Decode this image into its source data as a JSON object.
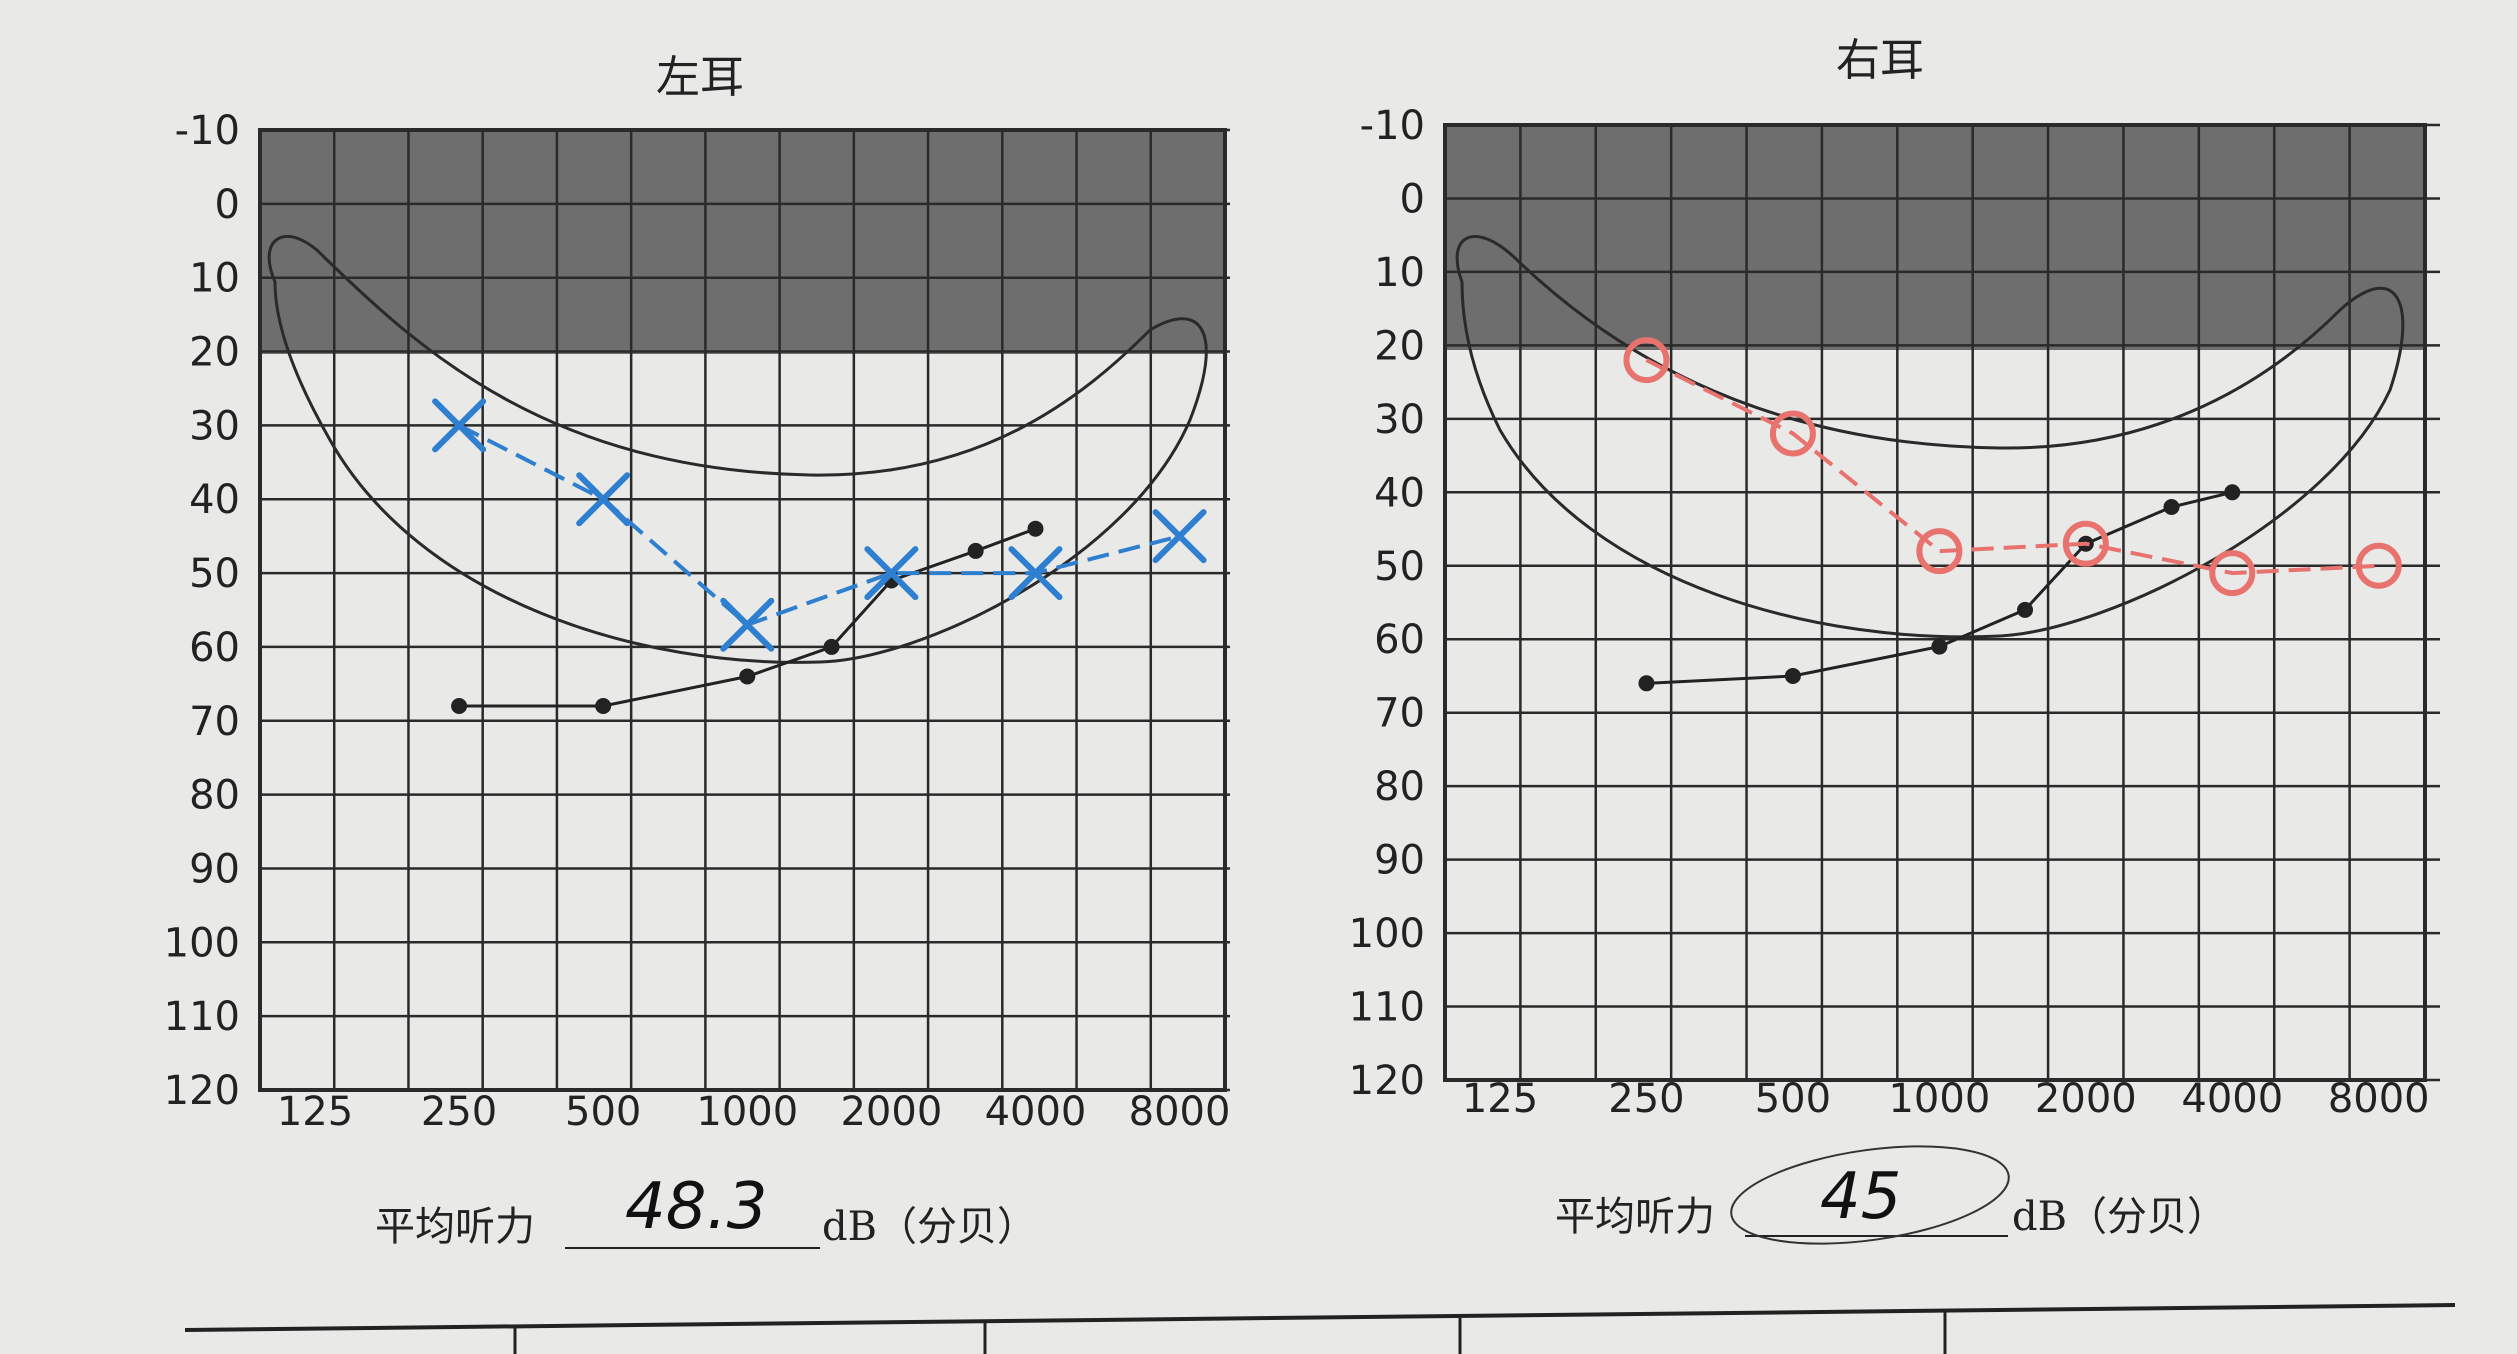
{
  "colors": {
    "paper": "#e9e9e7",
    "grid": "#2a2a2a",
    "shade": "#6e6e6e",
    "ink": "#222222",
    "left_marker": "#2f7fd0",
    "right_marker": "#e8736e"
  },
  "chart_data": [
    {
      "type": "line",
      "title": "左耳",
      "x_tick_labels": [
        "125",
        "250",
        "500",
        "1000",
        "2000",
        "4000",
        "8000"
      ],
      "y_tick_labels": [
        "-10",
        "0",
        "10",
        "20",
        "30",
        "40",
        "50",
        "60",
        "70",
        "80",
        "90",
        "100",
        "110",
        "120"
      ],
      "ylim": [
        -10,
        120
      ],
      "y_inverted": true,
      "shaded_range_db": [
        -10,
        20
      ],
      "grid": true,
      "series": [
        {
          "marker": "X",
          "color_name": "blue",
          "points": [
            {
              "freq": 250,
              "db": 30
            },
            {
              "freq": 500,
              "db": 40
            },
            {
              "freq": 1000,
              "db": 57
            },
            {
              "freq": 2000,
              "db": 50
            },
            {
              "freq": 4000,
              "db": 50
            },
            {
              "freq": 8000,
              "db": 45
            }
          ]
        },
        {
          "marker": "dot",
          "color_name": "black",
          "points": [
            {
              "freq": 250,
              "db": 68
            },
            {
              "freq": 500,
              "db": 68
            },
            {
              "freq": 1000,
              "db": 64
            },
            {
              "freq": 1500,
              "db": 60
            },
            {
              "freq": 2000,
              "db": 51
            },
            {
              "freq": 3000,
              "db": 47
            },
            {
              "freq": 4000,
              "db": 44
            }
          ]
        }
      ],
      "footer_label": "平均听力",
      "average": "48.3",
      "unit": "dB（分贝）"
    },
    {
      "type": "line",
      "title": "右耳",
      "x_tick_labels": [
        "125",
        "250",
        "500",
        "1000",
        "2000",
        "4000",
        "8000"
      ],
      "y_tick_labels": [
        "-10",
        "0",
        "10",
        "20",
        "30",
        "40",
        "50",
        "60",
        "70",
        "80",
        "90",
        "100",
        "110",
        "120"
      ],
      "ylim": [
        -10,
        120
      ],
      "y_inverted": true,
      "shaded_range_db": [
        -10,
        20
      ],
      "grid": true,
      "series": [
        {
          "marker": "O",
          "color_name": "red",
          "points": [
            {
              "freq": 250,
              "db": 22
            },
            {
              "freq": 500,
              "db": 32
            },
            {
              "freq": 1000,
              "db": 48
            },
            {
              "freq": 2000,
              "db": 47
            },
            {
              "freq": 4000,
              "db": 51
            },
            {
              "freq": 8000,
              "db": 50
            }
          ]
        },
        {
          "marker": "dot",
          "color_name": "black",
          "points": [
            {
              "freq": 250,
              "db": 66
            },
            {
              "freq": 500,
              "db": 65
            },
            {
              "freq": 1000,
              "db": 61
            },
            {
              "freq": 1500,
              "db": 56
            },
            {
              "freq": 2000,
              "db": 47
            },
            {
              "freq": 3000,
              "db": 42
            },
            {
              "freq": 4000,
              "db": 40
            }
          ]
        }
      ],
      "footer_label": "平均听力",
      "average": "45",
      "unit": "dB（分贝）"
    }
  ]
}
